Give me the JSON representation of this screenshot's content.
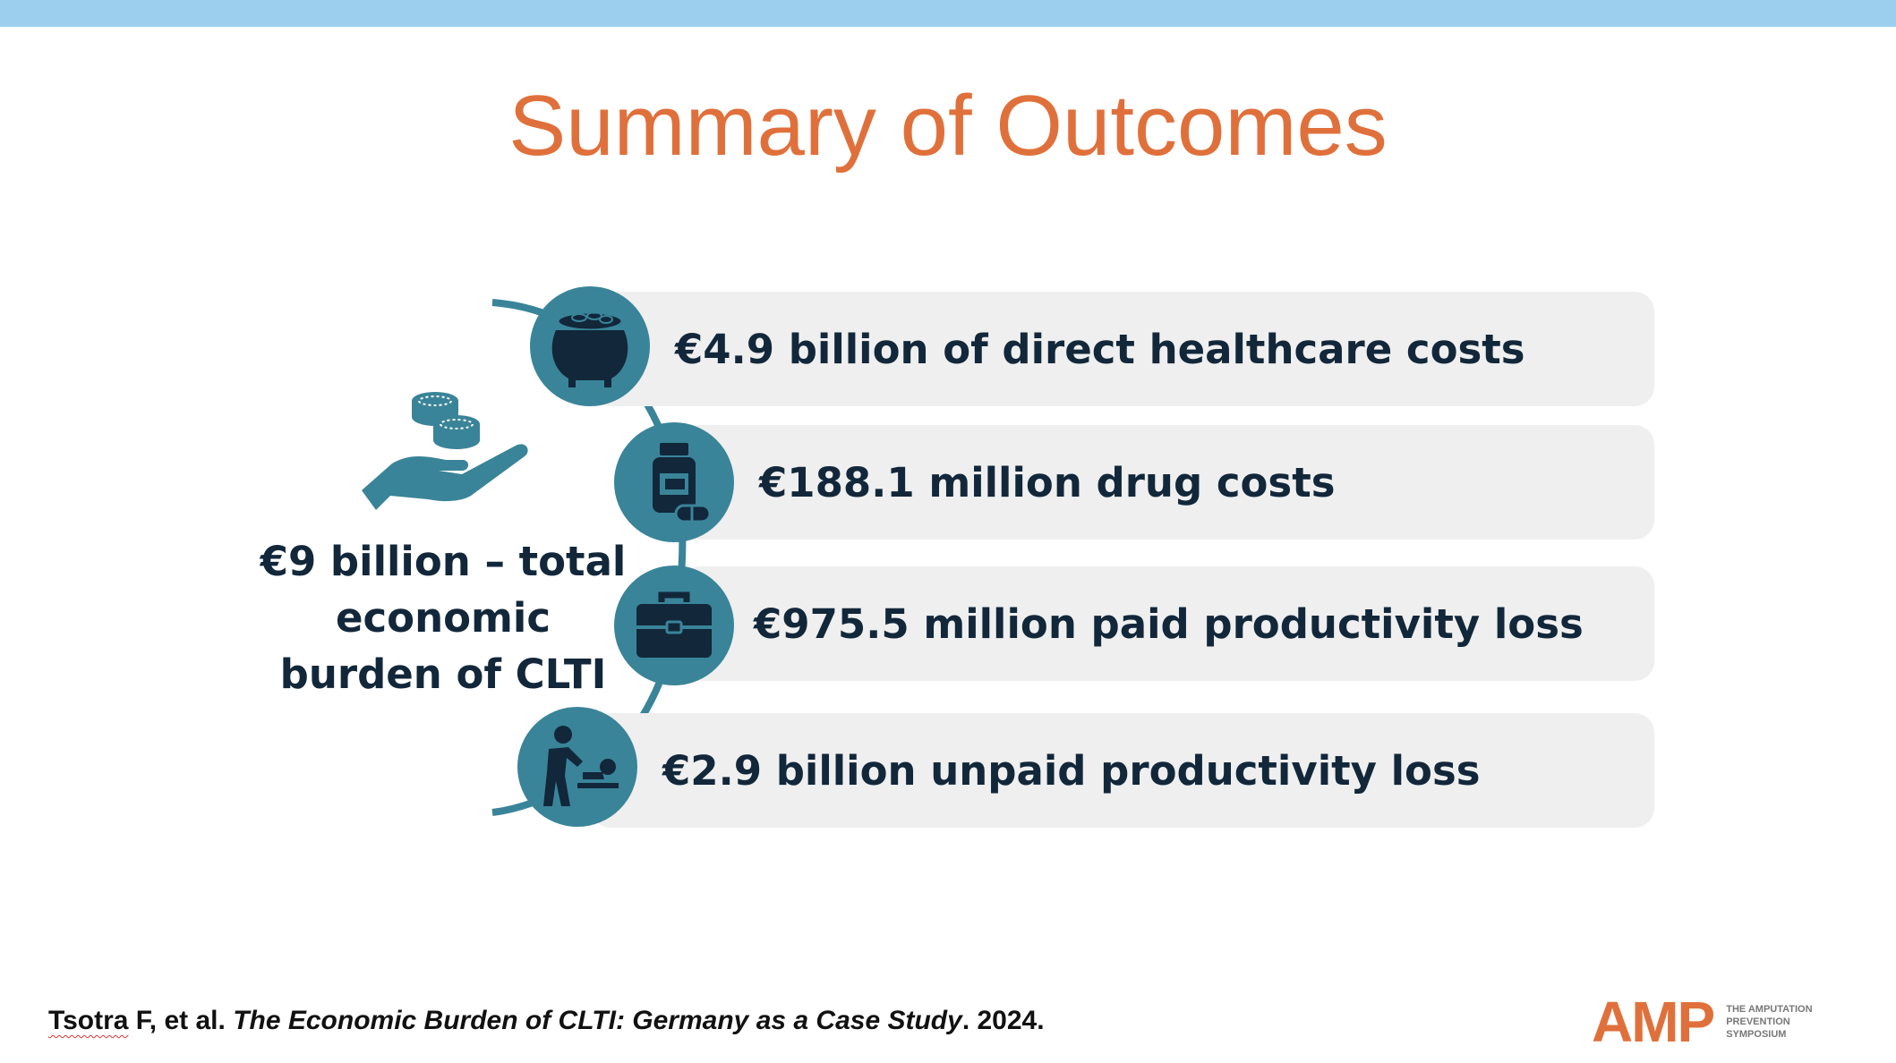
{
  "slide": {
    "title": "Summary of Outcomes",
    "total": {
      "line1": "€9 billion – total",
      "line2": "economic",
      "line3": "burden of CLTI"
    },
    "items": [
      {
        "label": "€4.9 billion of direct healthcare costs",
        "icon": "pot-of-coins-icon"
      },
      {
        "label": "€188.1 million drug costs",
        "icon": "medicine-bottle-icon"
      },
      {
        "label": "€975.5 million paid productivity loss",
        "icon": "briefcase-icon"
      },
      {
        "label": "€2.9 billion unpaid productivity loss",
        "icon": "caregiver-icon"
      }
    ],
    "citation": {
      "author": "Tsotra",
      "rest": " F, et al. ",
      "work": "The Economic Burden of CLTI: Germany as a Case Study",
      "year": ". 2024."
    },
    "logo": {
      "mark": "AMP",
      "line1": "THE AMPUTATION",
      "line2": "PREVENTION",
      "line3": "SYMPOSIUM"
    },
    "colors": {
      "accent": "#e0703b",
      "teal": "#3a8499",
      "navy": "#12273a",
      "top_bar": "#9ccfee",
      "pill": "#efefef"
    }
  }
}
